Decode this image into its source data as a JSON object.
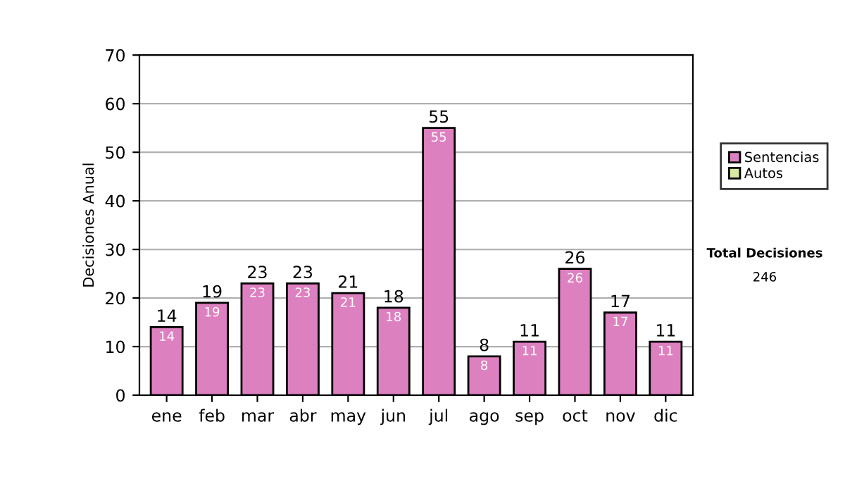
{
  "chart_data": {
    "type": "bar",
    "ylabel": "Decisiones Anual",
    "categories": [
      "ene",
      "feb",
      "mar",
      "abr",
      "may",
      "jun",
      "jul",
      "ago",
      "sep",
      "oct",
      "nov",
      "dic"
    ],
    "series": [
      {
        "name": "Sentencias",
        "color": "#dd80c0",
        "values": [
          14,
          19,
          23,
          23,
          21,
          18,
          55,
          8,
          11,
          26,
          17,
          11
        ],
        "value_labels": [
          "14",
          "19",
          "23",
          "23",
          "21",
          "18",
          "55",
          "8",
          "11",
          "26",
          "17",
          "11"
        ]
      },
      {
        "name": "Autos",
        "color": "#d8e8a0",
        "values": [
          null,
          null,
          null,
          null,
          null,
          null,
          null,
          null,
          null,
          null,
          null,
          null
        ]
      }
    ],
    "stacked": true,
    "totals": [
      "14",
      "19",
      "23",
      "23",
      "21",
      "18",
      "55",
      "8",
      "11",
      "26",
      "17",
      "11"
    ],
    "ylim": [
      0,
      70
    ],
    "yticks": [
      0,
      10,
      20,
      30,
      40,
      50,
      60,
      70
    ],
    "grid": "y",
    "legend": "right",
    "annotations": [
      "Total Decisiones",
      "246"
    ]
  }
}
